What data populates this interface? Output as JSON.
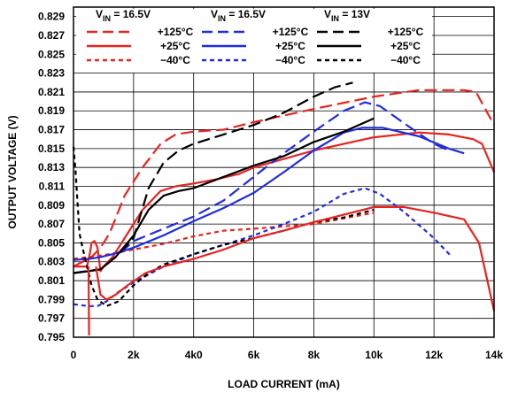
{
  "chart_data": {
    "type": "line",
    "xlabel": "LOAD CURRENT (mA)",
    "ylabel": "OUTPUT VOLTAGE (V)",
    "xlim": [
      0,
      14000
    ],
    "ylim": [
      0.795,
      0.83
    ],
    "x_ticks": [
      0,
      2000,
      4000,
      6000,
      8000,
      10000,
      12000,
      14000
    ],
    "x_tick_labels": [
      "0",
      "2k",
      "4k0",
      "6k",
      "8k",
      "10k",
      "12k",
      "14k"
    ],
    "y_ticks": [
      0.795,
      0.797,
      0.799,
      0.801,
      0.803,
      0.805,
      0.807,
      0.809,
      0.811,
      0.813,
      0.815,
      0.817,
      0.819,
      0.821,
      0.823,
      0.825,
      0.827,
      0.829
    ],
    "y_tick_labels": [
      "0.795",
      "0.797",
      "0.799",
      "0.801",
      "0.803",
      "0.805",
      "0.807",
      "0.809",
      "0.811",
      "0.813",
      "0.815",
      "0.817",
      "0.819",
      "0.821",
      "0.823",
      "0.825",
      "0.827",
      "0.829"
    ],
    "grid": true,
    "legend": {
      "placement": "top",
      "groups": [
        {
          "title_main": "V",
          "title_sub": "IN",
          "title_rest": " = 16.5V",
          "color": "#e8231e"
        },
        {
          "title_main": "V",
          "title_sub": "IN",
          "title_rest": " = 16.5V",
          "color": "#1f2ce0"
        },
        {
          "title_main": "V",
          "title_sub": "IN",
          "title_rest": " = 13V",
          "color": "#000000"
        }
      ],
      "row_labels": [
        "+125°C",
        "+25°C",
        "−40°C"
      ]
    },
    "series": [
      {
        "vin": "16.5V",
        "temp": "+125°C",
        "color": "#e8231e",
        "dash": "long",
        "x": [
          0,
          600,
          900,
          1200,
          1700,
          2300,
          2900,
          3400,
          4000,
          5000,
          6000,
          8000,
          10000,
          11500,
          13000,
          13400,
          14000
        ],
        "y": [
          0.8025,
          0.8035,
          0.8045,
          0.806,
          0.81,
          0.813,
          0.8155,
          0.8165,
          0.8168,
          0.817,
          0.8178,
          0.8192,
          0.8205,
          0.8212,
          0.8212,
          0.821,
          0.8175
        ]
      },
      {
        "vin": "16.5V",
        "temp": "+25°C",
        "color": "#e8231e",
        "dash": "solid",
        "x": [
          0,
          450,
          550,
          600,
          700,
          800,
          900,
          1000,
          1300,
          1700,
          2300,
          2900,
          3400,
          4000,
          4700,
          5500,
          6000,
          8000,
          10000,
          11500,
          12500,
          13300,
          13600,
          14000
        ],
        "y": [
          0.8025,
          0.8025,
          0.804,
          0.805,
          0.8052,
          0.8045,
          0.802,
          0.8025,
          0.8035,
          0.8055,
          0.8085,
          0.8105,
          0.811,
          0.8113,
          0.8117,
          0.8123,
          0.813,
          0.8148,
          0.8162,
          0.8167,
          0.8165,
          0.816,
          0.8155,
          0.8125
        ]
      },
      {
        "vin": "16.5V",
        "temp": "−40°C",
        "color": "#e8231e",
        "dash": "short",
        "x": [
          0,
          1000,
          2000,
          3000,
          4000,
          5000,
          6000,
          8000,
          10000
        ],
        "y": [
          0.8033,
          0.8037,
          0.8043,
          0.8049,
          0.8057,
          0.8063,
          0.8065,
          0.807,
          0.8082
        ]
      },
      {
        "vin": "16.5V",
        "temp": "+125°C",
        "color": "#1f2ce0",
        "dash": "long",
        "x": [
          0,
          900,
          1400,
          2000,
          3000,
          4000,
          5000,
          6000,
          7000,
          8000,
          9000,
          9700,
          10200,
          11000,
          12000,
          12500
        ],
        "y": [
          0.8018,
          0.8022,
          0.8035,
          0.8052,
          0.8065,
          0.8078,
          0.8095,
          0.812,
          0.8145,
          0.8168,
          0.819,
          0.8199,
          0.8195,
          0.8177,
          0.8155,
          0.8148
        ]
      },
      {
        "vin": "16.5V",
        "temp": "+25°C",
        "color": "#1f2ce0",
        "dash": "solid",
        "x": [
          0,
          500,
          900,
          1300,
          2000,
          3000,
          4000,
          5000,
          6000,
          7000,
          8000,
          9000,
          9600,
          10300,
          11500,
          12500,
          13000
        ],
        "y": [
          0.8032,
          0.8033,
          0.8035,
          0.8038,
          0.8045,
          0.8058,
          0.8073,
          0.8087,
          0.8103,
          0.8125,
          0.8148,
          0.8167,
          0.8172,
          0.8172,
          0.8163,
          0.815,
          0.8145
        ]
      },
      {
        "vin": "16.5V",
        "temp": "−40°C",
        "color": "#1f2ce0",
        "dash": "short",
        "x": [
          0,
          500,
          800,
          1100,
          1500,
          2000,
          3000,
          4000,
          5000,
          6000,
          7000,
          8000,
          9000,
          9700,
          10200,
          11000,
          12000,
          12600
        ],
        "y": [
          0.7985,
          0.7983,
          0.7983,
          0.7988,
          0.7998,
          0.8008,
          0.8025,
          0.8038,
          0.8048,
          0.8058,
          0.807,
          0.8083,
          0.8102,
          0.8108,
          0.8102,
          0.8083,
          0.8055,
          0.8035
        ]
      },
      {
        "vin": "13V",
        "temp": "+125°C",
        "color": "#000000",
        "dash": "long",
        "x": [
          0,
          900,
          1400,
          2000,
          2500,
          3000,
          3500,
          4000,
          5000,
          6000,
          7000,
          8000,
          8700,
          9300
        ],
        "y": [
          0.8018,
          0.8022,
          0.8035,
          0.8055,
          0.8108,
          0.8135,
          0.8148,
          0.8155,
          0.8165,
          0.8175,
          0.8188,
          0.8205,
          0.8215,
          0.822
        ]
      },
      {
        "vin": "13V",
        "temp": "+25°C",
        "color": "#000000",
        "dash": "solid",
        "x": [
          0,
          500,
          900,
          1400,
          2000,
          2500,
          3000,
          3500,
          4000,
          5000,
          6000,
          7000,
          8000,
          9000,
          10000
        ],
        "y": [
          0.8018,
          0.802,
          0.8022,
          0.8035,
          0.8058,
          0.8085,
          0.81,
          0.8105,
          0.8108,
          0.812,
          0.8132,
          0.8142,
          0.8157,
          0.8168,
          0.8182
        ]
      },
      {
        "vin": "13V",
        "temp": "−40°C",
        "color": "#000000",
        "dash": "short",
        "x": [
          0,
          70,
          130,
          200,
          300,
          450,
          600,
          800,
          1100,
          1500,
          2000,
          2500,
          3000,
          4000,
          5000,
          6000,
          7000,
          8000,
          9000,
          10000
        ],
        "y": [
          0.8152,
          0.8125,
          0.8095,
          0.806,
          0.8045,
          0.8025,
          0.8005,
          0.799,
          0.7983,
          0.7988,
          0.8005,
          0.8018,
          0.8027,
          0.8038,
          0.8048,
          0.8055,
          0.8063,
          0.8072,
          0.8077,
          0.8085
        ]
      },
      {
        "vin": "16.5V",
        "temp": "+25°C",
        "color": "#e8231e",
        "dash": "solid",
        "x": [
          500,
          520
        ],
        "y": [
          0.8025,
          0.7952
        ]
      },
      {
        "vin": "16.5V",
        "temp": "+25°C",
        "color": "#e8231e",
        "dash": "solid",
        "x": [
          750,
          900,
          1100,
          1400,
          1800,
          2400,
          3000,
          4000,
          5000,
          6000,
          7000,
          8000,
          9000,
          10000,
          11000,
          12000,
          13000,
          13500,
          14000
        ],
        "y": [
          0.8025,
          0.7995,
          0.799,
          0.7995,
          0.8005,
          0.8018,
          0.8025,
          0.8033,
          0.8043,
          0.8055,
          0.8063,
          0.8072,
          0.808,
          0.8088,
          0.8088,
          0.8082,
          0.8075,
          0.805,
          0.7978
        ]
      }
    ]
  }
}
